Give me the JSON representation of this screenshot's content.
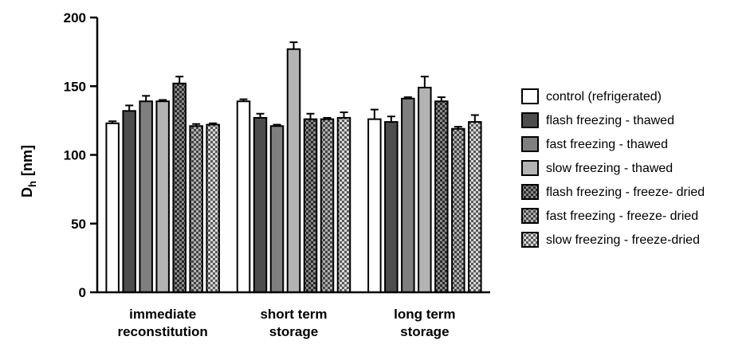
{
  "chart_data": {
    "type": "bar",
    "title": "",
    "xlabel": "",
    "ylabel": "D",
    "ylabel_sub": "h",
    "ylabel_unit": "[nm]",
    "ylim": [
      0,
      200
    ],
    "yticks": [
      0,
      50,
      100,
      150,
      200
    ],
    "grid": false,
    "legend_position": "right",
    "categories": [
      [
        "immediate",
        "reconstitution"
      ],
      [
        "short term",
        "storage"
      ],
      [
        "long term",
        "storage"
      ]
    ],
    "series": [
      {
        "name": "control (refrigerated)",
        "values": [
          123,
          139,
          126
        ],
        "errors": [
          1.5,
          1.5,
          7
        ],
        "color": "#ffffff",
        "pattern": "none"
      },
      {
        "name": "flash freezing - thawed",
        "values": [
          132,
          127,
          124
        ],
        "errors": [
          4,
          3,
          4
        ],
        "color": "#4d4d4d",
        "pattern": "none"
      },
      {
        "name": "fast freezing - thawed",
        "values": [
          139,
          121,
          141
        ],
        "errors": [
          4,
          1,
          1
        ],
        "color": "#7f7f7f",
        "pattern": "none"
      },
      {
        "name": "slow freezing - thawed",
        "values": [
          139,
          177,
          149
        ],
        "errors": [
          1,
          5,
          8
        ],
        "color": "#b3b3b3",
        "pattern": "none"
      },
      {
        "name": "flash freezing - freeze- dried",
        "values": [
          152,
          126,
          139
        ],
        "errors": [
          5,
          4,
          3
        ],
        "color": "#3a3a3a",
        "pattern": "checker-dark"
      },
      {
        "name": "fast freezing - freeze- dried",
        "values": [
          121,
          126,
          119
        ],
        "errors": [
          1.5,
          1,
          1.5
        ],
        "color": "#6a6a6a",
        "pattern": "checker-mid"
      },
      {
        "name": "slow freezing - freeze-dried",
        "values": [
          122,
          127,
          124
        ],
        "errors": [
          1,
          4,
          5
        ],
        "color": "#9a9a9a",
        "pattern": "checker-light"
      }
    ]
  }
}
